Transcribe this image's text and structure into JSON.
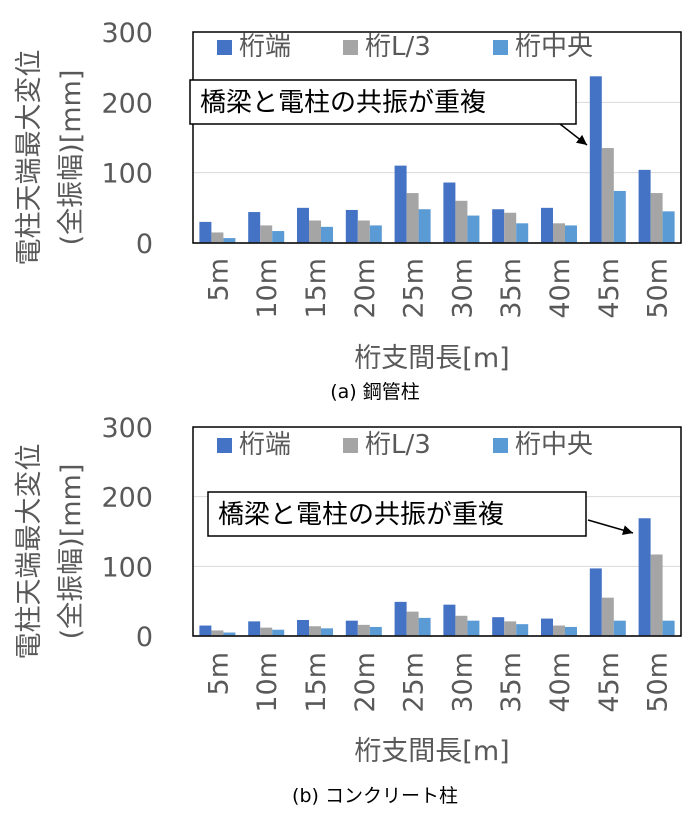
{
  "chart_data": [
    {
      "type": "bar",
      "caption": "(a) 鋼管柱",
      "ylabel_line1": "電柱天端最大変位",
      "ylabel_line2": "(全振幅)[mm]",
      "xlabel": "桁支間長[m]",
      "ylim": [
        0,
        300
      ],
      "yticks": [
        "0",
        "100",
        "200",
        "300"
      ],
      "grid": true,
      "legend_position": "top",
      "categories": [
        "5m",
        "10m",
        "15m",
        "20m",
        "25m",
        "30m",
        "35m",
        "40m",
        "45m",
        "50m"
      ],
      "series": [
        {
          "name": "桁端",
          "color": "#4472c4",
          "values": [
            30,
            44,
            50,
            47,
            110,
            86,
            48,
            50,
            237,
            104
          ]
        },
        {
          "name": "桁L/3",
          "color": "#a5a5a5",
          "values": [
            15,
            25,
            32,
            32,
            71,
            60,
            43,
            28,
            135,
            71
          ]
        },
        {
          "name": "桁中央",
          "color": "#5b9bd5",
          "values": [
            7,
            17,
            23,
            25,
            48,
            39,
            28,
            25,
            74,
            45
          ]
        }
      ],
      "annotation": "橋梁と電柱の共振が重複"
    },
    {
      "type": "bar",
      "caption": "(b) コンクリート柱",
      "ylabel_line1": "電柱天端最大変位",
      "ylabel_line2": "(全振幅)[mm]",
      "xlabel": "桁支間長[m]",
      "ylim": [
        0,
        300
      ],
      "yticks": [
        "0",
        "100",
        "200",
        "300"
      ],
      "grid": true,
      "legend_position": "top",
      "categories": [
        "5m",
        "10m",
        "15m",
        "20m",
        "25m",
        "30m",
        "35m",
        "40m",
        "45m",
        "50m"
      ],
      "series": [
        {
          "name": "桁端",
          "color": "#4472c4",
          "values": [
            15,
            21,
            23,
            22,
            49,
            45,
            27,
            25,
            97,
            169
          ]
        },
        {
          "name": "桁L/3",
          "color": "#a5a5a5",
          "values": [
            8,
            12,
            14,
            16,
            35,
            29,
            21,
            15,
            55,
            117
          ]
        },
        {
          "name": "桁中央",
          "color": "#5b9bd5",
          "values": [
            5,
            9,
            11,
            13,
            26,
            22,
            17,
            13,
            22,
            22
          ]
        }
      ],
      "annotation": "橋梁と電柱の共振が重複"
    }
  ]
}
